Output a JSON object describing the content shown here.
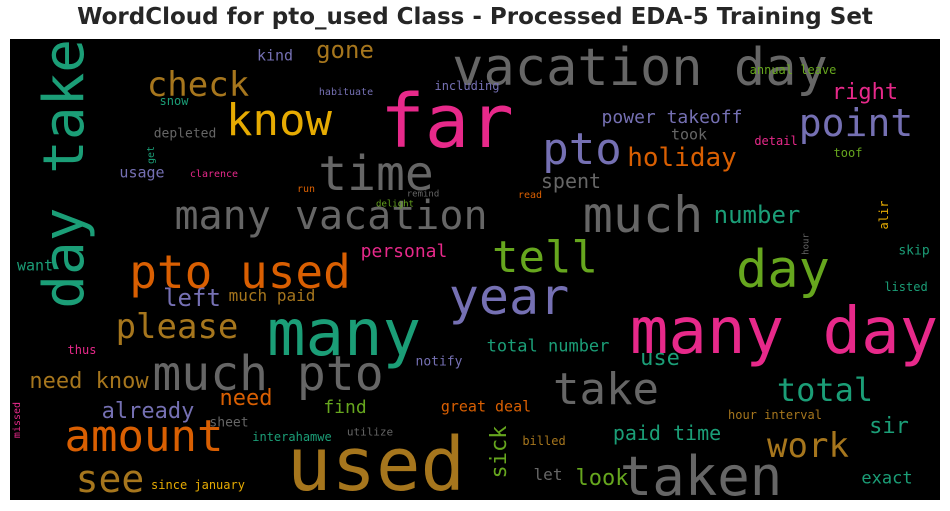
{
  "chart_data": {
    "type": "wordcloud",
    "title": "WordCloud for pto_used Class - Processed EDA-5 Training Set",
    "background": "#000000",
    "colormap": "Dark2",
    "words": [
      {
        "text": "vacation day",
        "color": "#666666",
        "weight": 52
      },
      {
        "text": "far",
        "color": "#e7298a",
        "weight": 74
      },
      {
        "text": "day taken",
        "color": "#1b9e77",
        "weight": 56,
        "vertical": true
      },
      {
        "text": "know",
        "color": "#e6ab02",
        "weight": 44
      },
      {
        "text": "check",
        "color": "#a6761d",
        "weight": 34
      },
      {
        "text": "gone",
        "color": "#a6761d",
        "weight": 24
      },
      {
        "text": "kind",
        "color": "#7570b3",
        "weight": 15
      },
      {
        "text": "annual leave",
        "color": "#66a61e",
        "weight": 12
      },
      {
        "text": "habituate",
        "color": "#7570b3",
        "weight": 10
      },
      {
        "text": "including",
        "color": "#7570b3",
        "weight": 12
      },
      {
        "text": "snow",
        "color": "#1b9e77",
        "weight": 12
      },
      {
        "text": "right",
        "color": "#e7298a",
        "weight": 22
      },
      {
        "text": "point",
        "color": "#7570b3",
        "weight": 38
      },
      {
        "text": "pto",
        "color": "#7570b3",
        "weight": 44
      },
      {
        "text": "power takeoff",
        "color": "#7570b3",
        "weight": 18
      },
      {
        "text": "took",
        "color": "#666666",
        "weight": 15
      },
      {
        "text": "depleted",
        "color": "#666666",
        "weight": 13
      },
      {
        "text": "get",
        "color": "#1b9e77",
        "weight": 10,
        "vertical": true
      },
      {
        "text": "detail",
        "color": "#e7298a",
        "weight": 12
      },
      {
        "text": "toof",
        "color": "#66a61e",
        "weight": 12
      },
      {
        "text": "time",
        "color": "#666666",
        "weight": 48
      },
      {
        "text": "holiday",
        "color": "#d95f02",
        "weight": 26
      },
      {
        "text": "usage",
        "color": "#7570b3",
        "weight": 15
      },
      {
        "text": "clarence",
        "color": "#e7298a",
        "weight": 10
      },
      {
        "text": "spent",
        "color": "#666666",
        "weight": 20
      },
      {
        "text": "run",
        "color": "#d95f02",
        "weight": 10
      },
      {
        "text": "remind",
        "color": "#666666",
        "weight": 9
      },
      {
        "text": "read",
        "color": "#d95f02",
        "weight": 10
      },
      {
        "text": "many vacation",
        "color": "#666666",
        "weight": 40
      },
      {
        "text": "much",
        "color": "#666666",
        "weight": 50
      },
      {
        "text": "number",
        "color": "#1b9e77",
        "weight": 24
      },
      {
        "text": "alir",
        "color": "#e6ab02",
        "weight": 12,
        "vertical": true
      },
      {
        "text": "delight",
        "color": "#66a61e",
        "weight": 9
      },
      {
        "text": "hour",
        "color": "#666666",
        "weight": 9,
        "vertical": true
      },
      {
        "text": "skip",
        "color": "#1b9e77",
        "weight": 13
      },
      {
        "text": "tell",
        "color": "#66a61e",
        "weight": 44
      },
      {
        "text": "personal",
        "color": "#e7298a",
        "weight": 18
      },
      {
        "text": "day",
        "color": "#66a61e",
        "weight": 52
      },
      {
        "text": "want",
        "color": "#1b9e77",
        "weight": 15
      },
      {
        "text": "pto used",
        "color": "#d95f02",
        "weight": 46
      },
      {
        "text": "year",
        "color": "#7570b3",
        "weight": 50
      },
      {
        "text": "listed",
        "color": "#1b9e77",
        "weight": 12
      },
      {
        "text": "left",
        "color": "#7570b3",
        "weight": 24
      },
      {
        "text": "much paid",
        "color": "#a6761d",
        "weight": 16
      },
      {
        "text": "please",
        "color": "#a6761d",
        "weight": 34
      },
      {
        "text": "many",
        "color": "#1b9e77",
        "weight": 64
      },
      {
        "text": "many day",
        "color": "#e7298a",
        "weight": 64
      },
      {
        "text": "thus",
        "color": "#e7298a",
        "weight": 12
      },
      {
        "text": "total number",
        "color": "#1b9e77",
        "weight": 17
      },
      {
        "text": "notify",
        "color": "#7570b3",
        "weight": 13
      },
      {
        "text": "use",
        "color": "#1b9e77",
        "weight": 22
      },
      {
        "text": "much pto",
        "color": "#666666",
        "weight": 48
      },
      {
        "text": "need know",
        "color": "#a6761d",
        "weight": 22
      },
      {
        "text": "take",
        "color": "#666666",
        "weight": 44
      },
      {
        "text": "total",
        "color": "#1b9e77",
        "weight": 32
      },
      {
        "text": "already",
        "color": "#7570b3",
        "weight": 22
      },
      {
        "text": "need",
        "color": "#d95f02",
        "weight": 22
      },
      {
        "text": "missed",
        "color": "#e7298a",
        "weight": 10,
        "vertical": true
      },
      {
        "text": "find",
        "color": "#66a61e",
        "weight": 18
      },
      {
        "text": "great deal",
        "color": "#d95f02",
        "weight": 15
      },
      {
        "text": "hour interval",
        "color": "#a6761d",
        "weight": 12
      },
      {
        "text": "amount",
        "color": "#d95f02",
        "weight": 44
      },
      {
        "text": "sheet",
        "color": "#666666",
        "weight": 13
      },
      {
        "text": "sir",
        "color": "#1b9e77",
        "weight": 22
      },
      {
        "text": "interahamwe",
        "color": "#1b9e77",
        "weight": 12
      },
      {
        "text": "utilize",
        "color": "#666666",
        "weight": 11
      },
      {
        "text": "sick",
        "color": "#66a61e",
        "weight": 22,
        "vertical": true
      },
      {
        "text": "billed",
        "color": "#a6761d",
        "weight": 12
      },
      {
        "text": "paid time",
        "color": "#1b9e77",
        "weight": 20
      },
      {
        "text": "work",
        "color": "#a6761d",
        "weight": 34
      },
      {
        "text": "used",
        "color": "#a6761d",
        "weight": 74
      },
      {
        "text": "see",
        "color": "#a6761d",
        "weight": 38
      },
      {
        "text": "let",
        "color": "#666666",
        "weight": 16
      },
      {
        "text": "look",
        "color": "#66a61e",
        "weight": 22
      },
      {
        "text": "taken",
        "color": "#666666",
        "weight": 54
      },
      {
        "text": "exact",
        "color": "#1b9e77",
        "weight": 17
      },
      {
        "text": "since january",
        "color": "#e6ab02",
        "weight": 12
      }
    ]
  }
}
